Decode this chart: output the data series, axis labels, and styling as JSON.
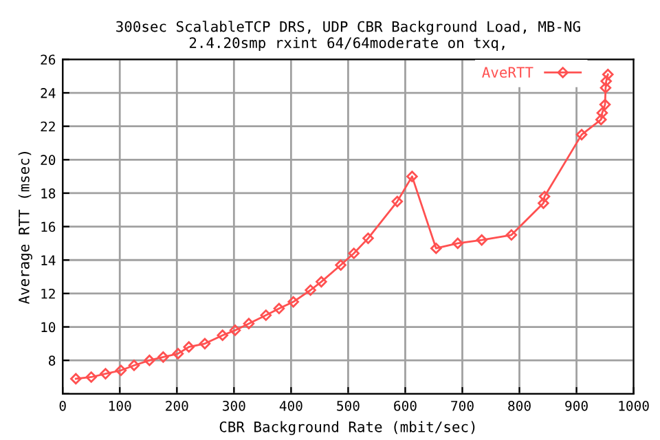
{
  "chart_data": {
    "type": "line",
    "title": "300sec ScalableTCP DRS, UDP CBR Background Load, MB-NG\n2.4.20smp rxint 64/64moderate on txq,",
    "xlabel": "CBR Background Rate (mbit/sec)",
    "ylabel": "Average RTT (msec)",
    "x": [
      23,
      50,
      75,
      102,
      125,
      152,
      176,
      202,
      221,
      249,
      280,
      302,
      326,
      356,
      379,
      404,
      434,
      453,
      487,
      510,
      535,
      586,
      612,
      654,
      692,
      734,
      786,
      842,
      844,
      909,
      943,
      945,
      950,
      951,
      952,
      955
    ],
    "series": [
      {
        "name": "AveRTT",
        "color": "#ff5050",
        "values": [
          6.9,
          7.0,
          7.2,
          7.4,
          7.7,
          8.0,
          8.2,
          8.4,
          8.8,
          9.0,
          9.5,
          9.8,
          10.2,
          10.7,
          11.1,
          11.5,
          12.2,
          12.7,
          13.7,
          14.4,
          15.3,
          17.5,
          19.0,
          14.7,
          15.0,
          15.2,
          15.5,
          17.4,
          17.8,
          21.5,
          22.4,
          22.8,
          23.3,
          24.3,
          24.7,
          25.1
        ]
      }
    ],
    "xlim": [
      0,
      1000
    ],
    "xticks": [
      0,
      100,
      200,
      300,
      400,
      500,
      600,
      700,
      800,
      900,
      1000
    ],
    "ylim": [
      6,
      26
    ],
    "yticks": [
      {
        "value": 6,
        "label": null
      },
      8,
      10,
      12,
      14,
      16,
      18,
      20,
      22,
      24,
      26
    ],
    "grid": true,
    "legend": "top right",
    "marker": "diamond",
    "line_style": "solid"
  }
}
